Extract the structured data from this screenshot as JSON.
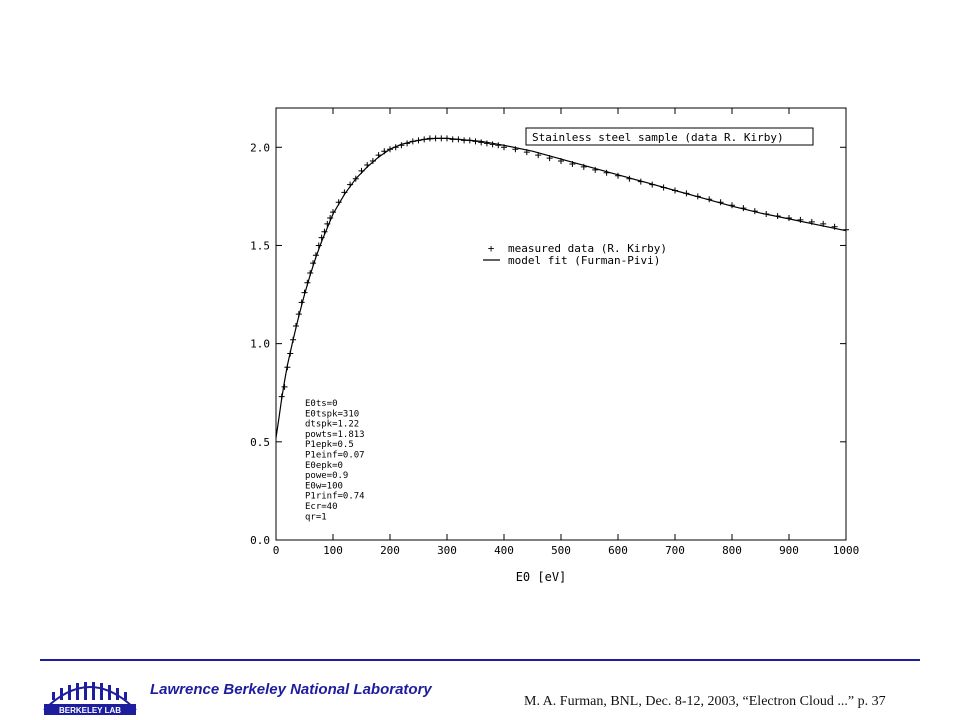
{
  "slide": {
    "lab_name": "Lawrence Berkeley National Laboratory",
    "credit": "M. A. Furman, BNL, Dec. 8-12, 2003, “Electron Cloud ...”  p. 37",
    "logo_text": "BERKELEY LAB",
    "accent_color": "#1d1d9e"
  },
  "chart_data": {
    "type": "line",
    "title": "Stainless steel sample (data R. Kirby)",
    "xlabel": "E0 [eV]",
    "ylabel": "",
    "xlim": [
      0,
      1000
    ],
    "ylim": [
      0,
      2.2
    ],
    "x_ticks": [
      0,
      100,
      200,
      300,
      400,
      500,
      600,
      700,
      800,
      900,
      1000
    ],
    "y_ticks": [
      "0.0",
      "0.5",
      "1.0",
      "1.5",
      "2.0"
    ],
    "grid": false,
    "legend": [
      {
        "symbol": "+",
        "label": "measured data (R. Kirby)"
      },
      {
        "symbol": "line",
        "label": "model fit (Furman-Pivi)"
      }
    ],
    "parameters": [
      "E0ts=0",
      "E0tspk=310",
      "dtspk=1.22",
      "powts=1.813",
      "P1epk=0.5",
      "P1einf=0.07",
      "E0epk=0",
      "powe=0.9",
      "E0w=100",
      "P1rinf=0.74",
      "Ecr=40",
      "qr=1"
    ],
    "series": [
      {
        "name": "measured data (R. Kirby)",
        "style": "plus-markers",
        "x": [
          10,
          15,
          20,
          25,
          30,
          35,
          40,
          45,
          50,
          55,
          60,
          65,
          70,
          75,
          80,
          85,
          90,
          95,
          100,
          110,
          120,
          130,
          140,
          150,
          160,
          170,
          180,
          190,
          200,
          210,
          220,
          230,
          240,
          250,
          260,
          270,
          280,
          290,
          300,
          310,
          320,
          330,
          340,
          350,
          360,
          370,
          380,
          390,
          400,
          420,
          440,
          460,
          480,
          500,
          520,
          540,
          560,
          580,
          600,
          620,
          640,
          660,
          680,
          700,
          720,
          740,
          760,
          780,
          800,
          820,
          840,
          860,
          880,
          900,
          920,
          940,
          960,
          980,
          1000
        ],
        "y": [
          0.73,
          0.78,
          0.88,
          0.95,
          1.02,
          1.09,
          1.15,
          1.21,
          1.26,
          1.31,
          1.36,
          1.41,
          1.45,
          1.5,
          1.54,
          1.57,
          1.61,
          1.64,
          1.67,
          1.72,
          1.77,
          1.81,
          1.84,
          1.88,
          1.91,
          1.93,
          1.96,
          1.98,
          1.99,
          2.0,
          2.01,
          2.02,
          2.03,
          2.035,
          2.04,
          2.045,
          2.045,
          2.045,
          2.045,
          2.04,
          2.04,
          2.035,
          2.035,
          2.03,
          2.025,
          2.02,
          2.015,
          2.01,
          2.0,
          1.99,
          1.975,
          1.96,
          1.945,
          1.93,
          1.915,
          1.9,
          1.885,
          1.87,
          1.855,
          1.84,
          1.825,
          1.81,
          1.795,
          1.78,
          1.765,
          1.75,
          1.735,
          1.72,
          1.705,
          1.69,
          1.675,
          1.66,
          1.65,
          1.64,
          1.63,
          1.62,
          1.61,
          1.595,
          1.58
        ]
      },
      {
        "name": "model fit (Furman-Pivi)",
        "style": "solid-line",
        "x": [
          0,
          5,
          10,
          15,
          20,
          30,
          40,
          50,
          60,
          70,
          80,
          90,
          100,
          120,
          140,
          160,
          180,
          200,
          220,
          240,
          260,
          280,
          300,
          320,
          340,
          360,
          380,
          400,
          450,
          500,
          550,
          600,
          650,
          700,
          750,
          800,
          850,
          900,
          950,
          1000
        ],
        "y": [
          0.52,
          0.62,
          0.72,
          0.81,
          0.89,
          1.02,
          1.14,
          1.25,
          1.35,
          1.44,
          1.52,
          1.59,
          1.66,
          1.76,
          1.84,
          1.9,
          1.95,
          1.99,
          2.015,
          2.03,
          2.04,
          2.045,
          2.045,
          2.04,
          2.035,
          2.03,
          2.02,
          2.01,
          1.98,
          1.94,
          1.9,
          1.86,
          1.82,
          1.78,
          1.74,
          1.7,
          1.665,
          1.635,
          1.605,
          1.575
        ]
      }
    ]
  }
}
